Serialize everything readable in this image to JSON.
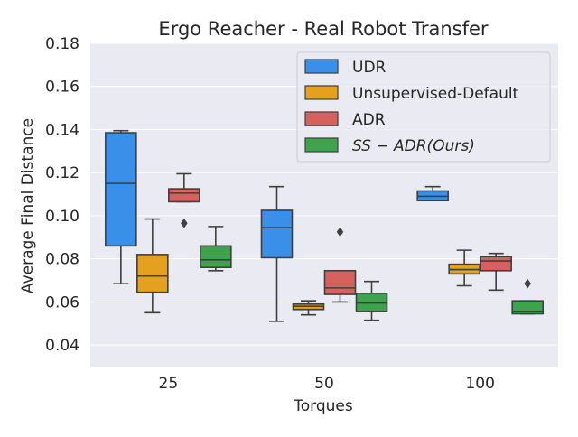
{
  "chart_data": {
    "type": "box",
    "title": "Ergo Reacher - Real Robot Transfer",
    "xlabel": "Torques",
    "ylabel": "Average Final Distance",
    "categories": [
      "25",
      "50",
      "100"
    ],
    "ylim": [
      0.03,
      0.18
    ],
    "yticks": [
      0.04,
      0.06,
      0.08,
      0.1,
      0.12,
      0.14,
      0.16,
      0.18
    ],
    "ytick_labels": [
      "0.04",
      "0.06",
      "0.08",
      "0.10",
      "0.12",
      "0.14",
      "0.16",
      "0.18"
    ],
    "grid": true,
    "legend_position": "top-right",
    "series": [
      {
        "name": "UDR",
        "color": "#3a8fe8",
        "boxes": [
          {
            "whislo": 0.0685,
            "q1": 0.086,
            "med": 0.115,
            "q3": 0.1385,
            "whishi": 0.1395,
            "fliers": []
          },
          {
            "whislo": 0.051,
            "q1": 0.0805,
            "med": 0.0945,
            "q3": 0.1025,
            "whishi": 0.1135,
            "fliers": []
          },
          {
            "whislo": 0.107,
            "q1": 0.107,
            "med": 0.109,
            "q3": 0.1115,
            "whishi": 0.1135,
            "fliers": []
          }
        ]
      },
      {
        "name": "Unsupervised-Default",
        "color": "#e5a01d",
        "boxes": [
          {
            "whislo": 0.055,
            "q1": 0.0645,
            "med": 0.072,
            "q3": 0.082,
            "whishi": 0.0985,
            "fliers": []
          },
          {
            "whislo": 0.054,
            "q1": 0.0565,
            "med": 0.058,
            "q3": 0.059,
            "whishi": 0.0605,
            "fliers": []
          },
          {
            "whislo": 0.0675,
            "q1": 0.073,
            "med": 0.075,
            "q3": 0.0775,
            "whishi": 0.084,
            "fliers": []
          }
        ]
      },
      {
        "name": "ADR",
        "color": "#d6625f",
        "boxes": [
          {
            "whislo": 0.1065,
            "q1": 0.1065,
            "med": 0.1105,
            "q3": 0.1125,
            "whishi": 0.1195,
            "fliers": [
              0.0965
            ]
          },
          {
            "whislo": 0.06,
            "q1": 0.0635,
            "med": 0.0665,
            "q3": 0.0745,
            "whishi": 0.0745,
            "fliers": [
              0.0925
            ]
          },
          {
            "whislo": 0.0655,
            "q1": 0.0745,
            "med": 0.079,
            "q3": 0.081,
            "whishi": 0.0825,
            "fliers": []
          }
        ]
      },
      {
        "name": "SS-ADR(Ours)",
        "label": "SS − ADR(Ours)",
        "color": "#3fa34d",
        "boxes": [
          {
            "whislo": 0.0745,
            "q1": 0.076,
            "med": 0.0795,
            "q3": 0.086,
            "whishi": 0.095,
            "fliers": []
          },
          {
            "whislo": 0.0515,
            "q1": 0.0555,
            "med": 0.0595,
            "q3": 0.064,
            "whishi": 0.0695,
            "fliers": []
          },
          {
            "whislo": 0.0545,
            "q1": 0.0545,
            "med": 0.0555,
            "q3": 0.0605,
            "whishi": 0.0605,
            "fliers": [
              0.0685
            ]
          }
        ]
      }
    ]
  }
}
